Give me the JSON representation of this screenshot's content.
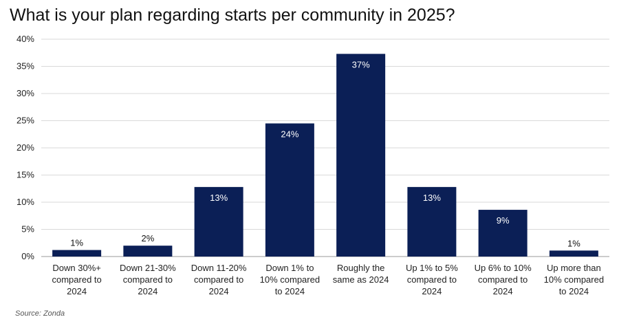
{
  "chart_data": {
    "type": "bar",
    "title": "What is your plan regarding starts per community in 2025?",
    "categories": [
      [
        "Down 30%+",
        "compared to",
        "2024"
      ],
      [
        "Down 21-30%",
        "compared to",
        "2024"
      ],
      [
        "Down 11-20%",
        "compared to",
        "2024"
      ],
      [
        "Down 1% to",
        "10% compared",
        "to 2024"
      ],
      [
        "Roughly the",
        "same as 2024"
      ],
      [
        "Up 1% to 5%",
        "compared to",
        "2024"
      ],
      [
        "Up 6% to 10%",
        "compared to",
        "2024"
      ],
      [
        "Up more than",
        "10% compared",
        "to 2024"
      ]
    ],
    "values": [
      1.2,
      2,
      12.8,
      24.5,
      37.3,
      12.8,
      8.6,
      1.1
    ],
    "data_labels": [
      "1%",
      "2%",
      "13%",
      "24%",
      "37%",
      "13%",
      "9%",
      "1%"
    ],
    "y_ticks": [
      0,
      5,
      10,
      15,
      20,
      25,
      30,
      35,
      40
    ],
    "y_tick_labels": [
      "0%",
      "5%",
      "10%",
      "15%",
      "20%",
      "25%",
      "30%",
      "35%",
      "40%"
    ],
    "ylim": [
      0,
      40
    ],
    "xlabel": "",
    "ylabel": "",
    "grid": true,
    "bar_color": "#0b1f56",
    "source": "Source: Zonda"
  }
}
